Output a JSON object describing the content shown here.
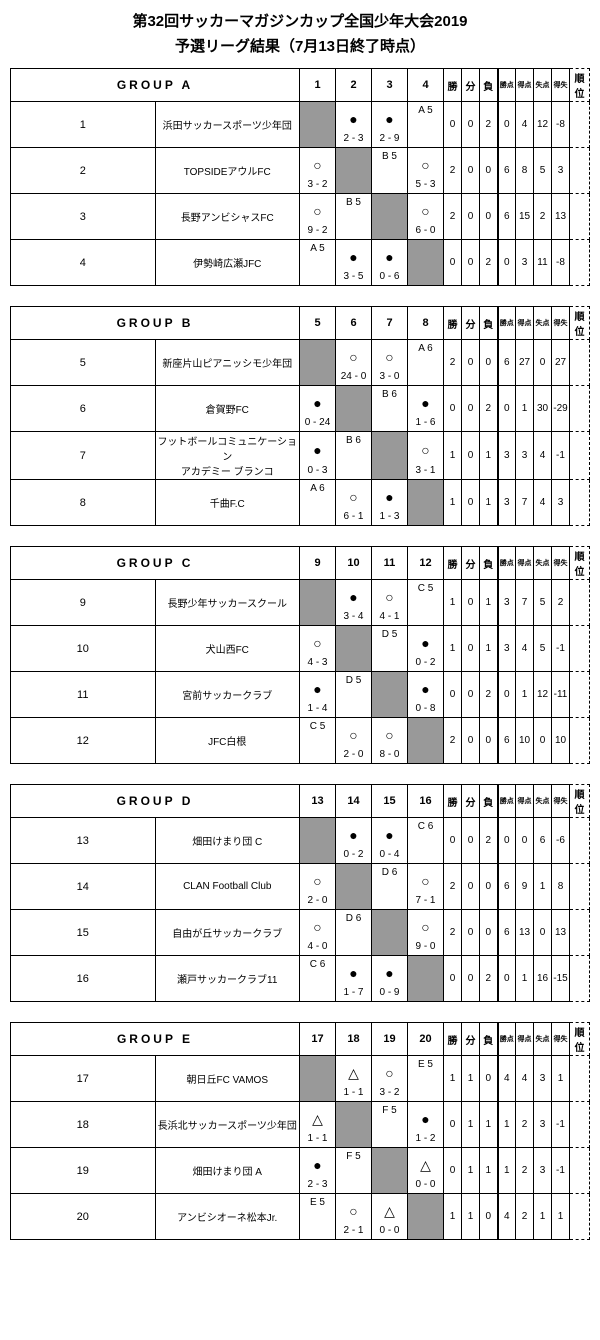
{
  "title": "第32回サッカーマガジンカップ全国少年大会2019",
  "subtitle": "予選リーグ結果（7月13日終了時点）",
  "stat_headers": [
    "勝",
    "分",
    "負",
    "勝点",
    "得点",
    "失点",
    "得失",
    "順位"
  ],
  "groups": [
    {
      "name": "GROUP A",
      "cols": [
        "1",
        "2",
        "3",
        "4"
      ],
      "rows": [
        {
          "num": "1",
          "team": "浜田サッカースポーツ少年団",
          "cells": [
            null,
            {
              "t": "",
              "m": "●",
              "b": "2 - 3"
            },
            {
              "t": "",
              "m": "●",
              "b": "2 - 9"
            },
            {
              "t": "A 5",
              "m": "",
              "b": ""
            }
          ],
          "stats": [
            "0",
            "0",
            "2",
            "0",
            "4",
            "12",
            "-8",
            ""
          ]
        },
        {
          "num": "2",
          "team": "TOPSIDEアウルFC",
          "cells": [
            {
              "t": "",
              "m": "○",
              "b": "3 - 2"
            },
            null,
            {
              "t": "B 5",
              "m": "",
              "b": ""
            },
            {
              "t": "",
              "m": "○",
              "b": "5 - 3"
            }
          ],
          "stats": [
            "2",
            "0",
            "0",
            "6",
            "8",
            "5",
            "3",
            ""
          ]
        },
        {
          "num": "3",
          "team": "長野アンビシャスFC",
          "cells": [
            {
              "t": "",
              "m": "○",
              "b": "9 - 2"
            },
            {
              "t": "B 5",
              "m": "",
              "b": ""
            },
            null,
            {
              "t": "",
              "m": "○",
              "b": "6 - 0"
            }
          ],
          "stats": [
            "2",
            "0",
            "0",
            "6",
            "15",
            "2",
            "13",
            ""
          ]
        },
        {
          "num": "4",
          "team": "伊勢崎広瀬JFC",
          "cells": [
            {
              "t": "A 5",
              "m": "",
              "b": ""
            },
            {
              "t": "",
              "m": "●",
              "b": "3 - 5"
            },
            {
              "t": "",
              "m": "●",
              "b": "0 - 6"
            },
            null
          ],
          "stats": [
            "0",
            "0",
            "2",
            "0",
            "3",
            "11",
            "-8",
            ""
          ]
        }
      ]
    },
    {
      "name": "GROUP B",
      "cols": [
        "5",
        "6",
        "7",
        "8"
      ],
      "rows": [
        {
          "num": "5",
          "team": "新座片山ピアニッシモ少年団",
          "cells": [
            null,
            {
              "t": "",
              "m": "○",
              "b": "24 - 0"
            },
            {
              "t": "",
              "m": "○",
              "b": "3 - 0"
            },
            {
              "t": "A 6",
              "m": "",
              "b": ""
            }
          ],
          "stats": [
            "2",
            "0",
            "0",
            "6",
            "27",
            "0",
            "27",
            ""
          ]
        },
        {
          "num": "6",
          "team": "倉賀野FC",
          "cells": [
            {
              "t": "",
              "m": "●",
              "b": "0 - 24"
            },
            null,
            {
              "t": "B 6",
              "m": "",
              "b": ""
            },
            {
              "t": "",
              "m": "●",
              "b": "1 - 6"
            }
          ],
          "stats": [
            "0",
            "0",
            "2",
            "0",
            "1",
            "30",
            "-29",
            ""
          ]
        },
        {
          "num": "7",
          "team": "フットボールコミュニケーション\nアカデミー ブランコ",
          "cells": [
            {
              "t": "",
              "m": "●",
              "b": "0 - 3"
            },
            {
              "t": "B 6",
              "m": "",
              "b": ""
            },
            null,
            {
              "t": "",
              "m": "○",
              "b": "3 - 1"
            }
          ],
          "stats": [
            "1",
            "0",
            "1",
            "3",
            "3",
            "4",
            "-1",
            ""
          ]
        },
        {
          "num": "8",
          "team": "千曲F.C",
          "cells": [
            {
              "t": "A 6",
              "m": "",
              "b": ""
            },
            {
              "t": "",
              "m": "○",
              "b": "6 - 1"
            },
            {
              "t": "",
              "m": "●",
              "b": "1 - 3"
            },
            null
          ],
          "stats": [
            "1",
            "0",
            "1",
            "3",
            "7",
            "4",
            "3",
            ""
          ]
        }
      ]
    },
    {
      "name": "GROUP C",
      "cols": [
        "9",
        "10",
        "11",
        "12"
      ],
      "rows": [
        {
          "num": "9",
          "team": "長野少年サッカースクール",
          "cells": [
            null,
            {
              "t": "",
              "m": "●",
              "b": "3 - 4"
            },
            {
              "t": "",
              "m": "○",
              "b": "4 - 1"
            },
            {
              "t": "C 5",
              "m": "",
              "b": ""
            }
          ],
          "stats": [
            "1",
            "0",
            "1",
            "3",
            "7",
            "5",
            "2",
            ""
          ]
        },
        {
          "num": "10",
          "team": "犬山西FC",
          "cells": [
            {
              "t": "",
              "m": "○",
              "b": "4 - 3"
            },
            null,
            {
              "t": "D 5",
              "m": "",
              "b": ""
            },
            {
              "t": "",
              "m": "●",
              "b": "0 - 2"
            }
          ],
          "stats": [
            "1",
            "0",
            "1",
            "3",
            "4",
            "5",
            "-1",
            ""
          ]
        },
        {
          "num": "11",
          "team": "宮前サッカークラブ",
          "cells": [
            {
              "t": "",
              "m": "●",
              "b": "1 - 4"
            },
            {
              "t": "D 5",
              "m": "",
              "b": ""
            },
            null,
            {
              "t": "",
              "m": "●",
              "b": "0 - 8"
            }
          ],
          "stats": [
            "0",
            "0",
            "2",
            "0",
            "1",
            "12",
            "-11",
            ""
          ]
        },
        {
          "num": "12",
          "team": "JFC白根",
          "cells": [
            {
              "t": "C 5",
              "m": "",
              "b": ""
            },
            {
              "t": "",
              "m": "○",
              "b": "2 - 0"
            },
            {
              "t": "",
              "m": "○",
              "b": "8 - 0"
            },
            null
          ],
          "stats": [
            "2",
            "0",
            "0",
            "6",
            "10",
            "0",
            "10",
            ""
          ]
        }
      ]
    },
    {
      "name": "GROUP D",
      "cols": [
        "13",
        "14",
        "15",
        "16"
      ],
      "rows": [
        {
          "num": "13",
          "team": "畑田けまり団 C",
          "cells": [
            null,
            {
              "t": "",
              "m": "●",
              "b": "0 - 2"
            },
            {
              "t": "",
              "m": "●",
              "b": "0 - 4"
            },
            {
              "t": "C 6",
              "m": "",
              "b": ""
            }
          ],
          "stats": [
            "0",
            "0",
            "2",
            "0",
            "0",
            "6",
            "-6",
            ""
          ]
        },
        {
          "num": "14",
          "team": "CLAN Football Club",
          "cells": [
            {
              "t": "",
              "m": "○",
              "b": "2 - 0"
            },
            null,
            {
              "t": "D 6",
              "m": "",
              "b": ""
            },
            {
              "t": "",
              "m": "○",
              "b": "7 - 1"
            }
          ],
          "stats": [
            "2",
            "0",
            "0",
            "6",
            "9",
            "1",
            "8",
            ""
          ]
        },
        {
          "num": "15",
          "team": "自由が丘サッカークラブ",
          "cells": [
            {
              "t": "",
              "m": "○",
              "b": "4 - 0"
            },
            {
              "t": "D 6",
              "m": "",
              "b": ""
            },
            null,
            {
              "t": "",
              "m": "○",
              "b": "9 - 0"
            }
          ],
          "stats": [
            "2",
            "0",
            "0",
            "6",
            "13",
            "0",
            "13",
            ""
          ]
        },
        {
          "num": "16",
          "team": "瀬戸サッカークラブ11",
          "cells": [
            {
              "t": "C 6",
              "m": "",
              "b": ""
            },
            {
              "t": "",
              "m": "●",
              "b": "1 - 7"
            },
            {
              "t": "",
              "m": "●",
              "b": "0 - 9"
            },
            null
          ],
          "stats": [
            "0",
            "0",
            "2",
            "0",
            "1",
            "16",
            "-15",
            ""
          ]
        }
      ]
    },
    {
      "name": "GROUP E",
      "cols": [
        "17",
        "18",
        "19",
        "20"
      ],
      "rows": [
        {
          "num": "17",
          "team": "朝日丘FC VAMOS",
          "cells": [
            null,
            {
              "t": "",
              "m": "△",
              "b": "1 - 1"
            },
            {
              "t": "",
              "m": "○",
              "b": "3 - 2"
            },
            {
              "t": "E 5",
              "m": "",
              "b": ""
            }
          ],
          "stats": [
            "1",
            "1",
            "0",
            "4",
            "4",
            "3",
            "1",
            ""
          ]
        },
        {
          "num": "18",
          "team": "長浜北サッカースポーツ少年団",
          "cells": [
            {
              "t": "",
              "m": "△",
              "b": "1 - 1"
            },
            null,
            {
              "t": "F 5",
              "m": "",
              "b": ""
            },
            {
              "t": "",
              "m": "●",
              "b": "1 - 2"
            }
          ],
          "stats": [
            "0",
            "1",
            "1",
            "1",
            "2",
            "3",
            "-1",
            ""
          ]
        },
        {
          "num": "19",
          "team": "畑田けまり団 A",
          "cells": [
            {
              "t": "",
              "m": "●",
              "b": "2 - 3"
            },
            {
              "t": "F 5",
              "m": "",
              "b": ""
            },
            null,
            {
              "t": "",
              "m": "△",
              "b": "0 - 0"
            }
          ],
          "stats": [
            "0",
            "1",
            "1",
            "1",
            "2",
            "3",
            "-1",
            ""
          ]
        },
        {
          "num": "20",
          "team": "アンビシオーネ松本Jr.",
          "cells": [
            {
              "t": "E 5",
              "m": "",
              "b": ""
            },
            {
              "t": "",
              "m": "○",
              "b": "2 - 1"
            },
            {
              "t": "",
              "m": "△",
              "b": "0 - 0"
            },
            null
          ],
          "stats": [
            "1",
            "1",
            "0",
            "4",
            "2",
            "1",
            "1",
            ""
          ]
        }
      ]
    }
  ]
}
